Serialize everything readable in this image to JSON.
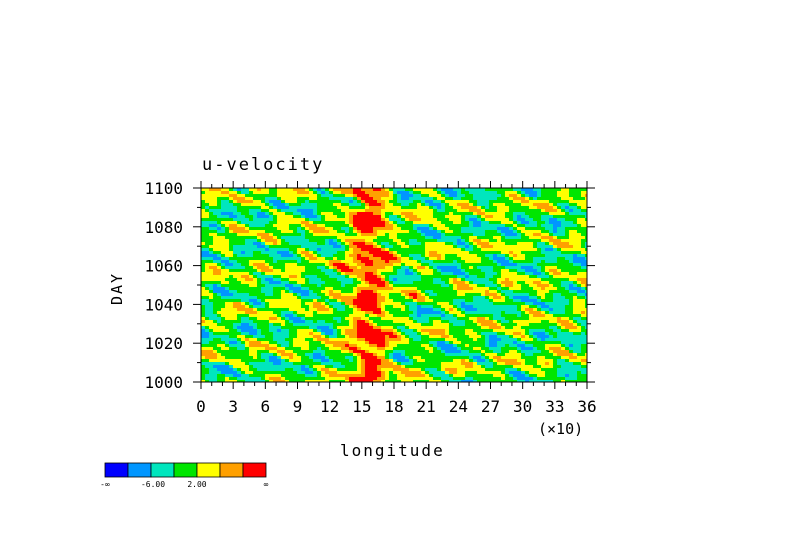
{
  "chart_data": {
    "type": "heatmap",
    "title": "u-velocity",
    "xlabel": "longitude",
    "xlabel_multiplier": "(×10)",
    "ylabel": "DAY",
    "xlim": [
      0,
      36
    ],
    "ylim": [
      1000,
      1100
    ],
    "x_ticks": [
      0,
      3,
      6,
      9,
      12,
      15,
      18,
      21,
      24,
      27,
      30,
      33,
      36
    ],
    "x_tick_labels": [
      "0",
      "3",
      "6",
      "9",
      "12",
      "15",
      "18",
      "21",
      "24",
      "27",
      "30",
      "33",
      "36"
    ],
    "y_ticks": [
      1000,
      1020,
      1040,
      1060,
      1080,
      1100
    ],
    "y_tick_labels": [
      "1000",
      "1020",
      "1040",
      "1060",
      "1080",
      "1100"
    ],
    "grid": false,
    "colorbar": {
      "placement": "bottom-left",
      "colors": [
        "#0000ff",
        "#0096ff",
        "#00e6be",
        "#00e600",
        "#ffff00",
        "#ffa000",
        "#ff0000"
      ],
      "labels": [
        "-∞",
        "-6.00",
        "2.00",
        "∞"
      ]
    },
    "features": "westward-tilted bands; strong positive (red) core near longitude 150-180 across all days"
  }
}
